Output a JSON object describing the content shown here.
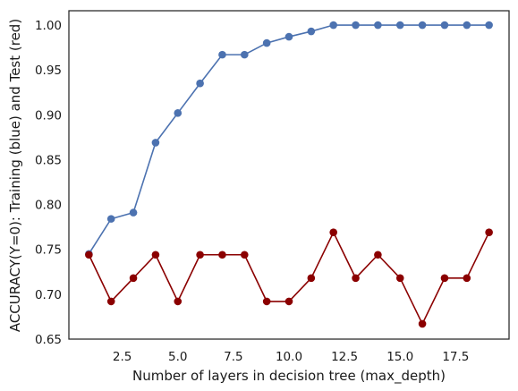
{
  "chart_data": {
    "type": "line",
    "title": "",
    "xlabel": "Number of layers in decision tree (max_depth)",
    "ylabel": "ACCURACY(Y=0): Training (blue) and Test (red)",
    "xlim": [
      0.1,
      19.9
    ],
    "ylim": [
      0.65,
      1.016
    ],
    "grid": false,
    "x": [
      1,
      2,
      3,
      4,
      5,
      6,
      7,
      8,
      9,
      10,
      11,
      12,
      13,
      14,
      15,
      16,
      17,
      18,
      19
    ],
    "xticks": [
      "2.5",
      "5.0",
      "7.5",
      "10.0",
      "12.5",
      "15.0",
      "17.5"
    ],
    "xtick_values": [
      2.5,
      5.0,
      7.5,
      10.0,
      12.5,
      15.0,
      17.5
    ],
    "yticks": [
      "0.65",
      "0.70",
      "0.75",
      "0.80",
      "0.85",
      "0.90",
      "0.95",
      "1.00"
    ],
    "ytick_values": [
      0.65,
      0.7,
      0.75,
      0.8,
      0.85,
      0.9,
      0.95,
      1.0
    ],
    "series": [
      {
        "color": "#4c72b0",
        "values": [
          0.745,
          0.784,
          0.791,
          0.869,
          0.902,
          0.935,
          0.967,
          0.967,
          0.98,
          0.987,
          0.993,
          1.0,
          1.0,
          1.0,
          1.0,
          1.0,
          1.0,
          1.0,
          1.0
        ]
      },
      {
        "color": "#8b0000",
        "values": [
          0.744,
          0.692,
          0.718,
          0.744,
          0.692,
          0.744,
          0.744,
          0.744,
          0.692,
          0.692,
          0.718,
          0.769,
          0.718,
          0.744,
          0.718,
          0.667,
          0.718,
          0.718,
          0.769
        ]
      }
    ]
  }
}
